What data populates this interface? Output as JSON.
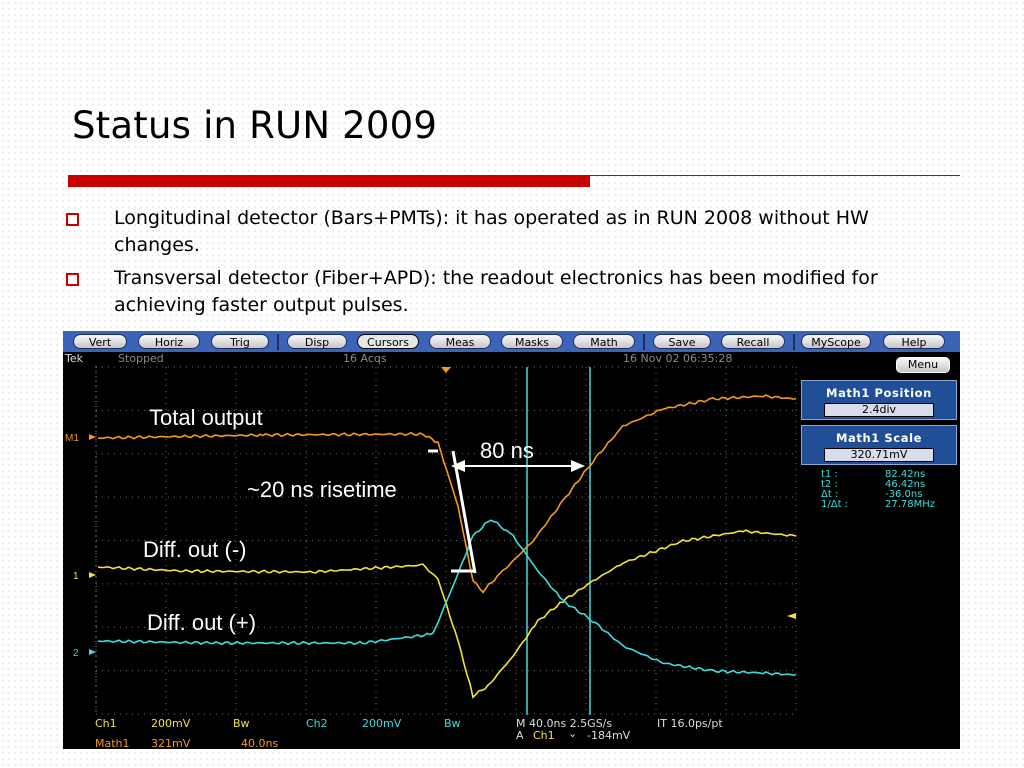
{
  "slide": {
    "title": "Status in RUN 2009",
    "bullets": [
      "Longitudinal detector (Bars+PMTs): it has operated as in RUN 2008 without HW changes.",
      "Transversal detector (Fiber+APD): the readout electronics  has been modified for achieving faster output  pulses."
    ],
    "colors": {
      "accent": "#c80000",
      "scope_menu": "#3b63b7",
      "trace_orange": "#f49a1f",
      "trace_yellow": "#f2e43a",
      "trace_cyan": "#3fdcdc"
    }
  },
  "scope": {
    "menu": [
      "Vert",
      "Horiz",
      "Trig",
      "Disp",
      "Cursors",
      "Meas",
      "Masks",
      "Math",
      "Save",
      "Recall",
      "MyScope",
      "Help"
    ],
    "active_menu": "Cursors",
    "status": {
      "brand": "Tek",
      "state": "Stopped",
      "acqs": "16 Acqs",
      "datetime": "16 Nov 02 06:35:28"
    },
    "menu_button": "Menu",
    "side": {
      "math1_position_label": "Math1 Position",
      "math1_position_value": "2.4div",
      "math1_scale_label": "Math1 Scale",
      "math1_scale_value": "320.71mV"
    },
    "readouts": [
      {
        "label": "t1 :",
        "value": "82.42ns"
      },
      {
        "label": "t2 :",
        "value": "46.42ns"
      },
      {
        "label": "Δt :",
        "value": "-36.0ns"
      },
      {
        "label": "1/Δt :",
        "value": "27.78MHz"
      }
    ],
    "markers": {
      "m1": "M1",
      "ch1": "1",
      "ch2": "2"
    },
    "bottom": {
      "ch1": "Ch1",
      "ch1_scale": "200mV",
      "ch1_bw": "Bw",
      "ch2": "Ch2",
      "ch2_scale": "200mV",
      "ch2_bw": "Bw",
      "timebase": "M 40.0ns 2.5GS/s",
      "it": "IT 16.0ps/pt",
      "trig_a": "A",
      "trig_src": "Ch1",
      "trig_slope": "⌄",
      "trig_level": "-184mV",
      "math1": "Math1",
      "math1_scale": "321mV",
      "math1_time": "40.0ns"
    },
    "annotations": {
      "total_output": "Total output",
      "delay": "80 ns",
      "risetime": "~20 ns risetime",
      "diff_minus": "Diff. out (-)",
      "diff_plus": "Diff. out (+)"
    }
  }
}
